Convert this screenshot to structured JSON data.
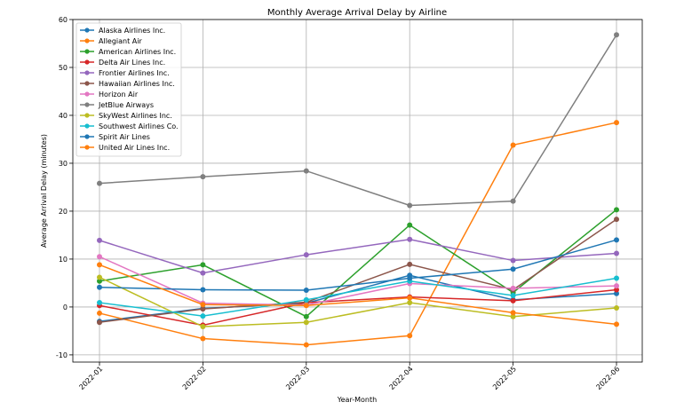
{
  "chart_data": {
    "type": "line",
    "title": "Monthly Average Arrival Delay by Airline",
    "xlabel": "Year-Month",
    "ylabel": "Average Arrival Delay (minutes)",
    "categories": [
      "2022-01",
      "2022-02",
      "2022-03",
      "2022-04",
      "2022-05",
      "2022-06"
    ],
    "ylim": [
      -11.5,
      60
    ],
    "yticks": [
      -10,
      0,
      10,
      20,
      30,
      40,
      50,
      60
    ],
    "grid": true,
    "legend_position": "top-left",
    "series": [
      {
        "name": "Alaska Airlines Inc.",
        "color": "#1f77b4",
        "values": [
          -3.0,
          -0.3,
          0.8,
          6.6,
          1.5,
          2.8
        ]
      },
      {
        "name": "Allegiant Air",
        "color": "#ff7f0e",
        "values": [
          -1.3,
          -6.6,
          -7.9,
          -6.0,
          33.8,
          38.5
        ]
      },
      {
        "name": "American Airlines Inc.",
        "color": "#2ca02c",
        "values": [
          5.4,
          8.8,
          -2.0,
          17.1,
          3.0,
          20.3
        ]
      },
      {
        "name": "Delta Air Lines Inc.",
        "color": "#d62728",
        "values": [
          0.3,
          -3.8,
          0.9,
          2.1,
          1.3,
          3.6
        ]
      },
      {
        "name": "Frontier Airlines Inc.",
        "color": "#9467bd",
        "values": [
          13.9,
          7.1,
          10.9,
          14.1,
          9.7,
          11.2
        ]
      },
      {
        "name": "Hawaiian Airlines Inc.",
        "color": "#8c564b",
        "values": [
          -3.2,
          -0.4,
          1.0,
          8.9,
          3.6,
          18.3
        ]
      },
      {
        "name": "Horizon Air",
        "color": "#e377c2",
        "values": [
          10.5,
          0.8,
          0.4,
          4.9,
          3.9,
          4.4
        ]
      },
      {
        "name": "JetBlue Airways",
        "color": "#7f7f7f",
        "values": [
          25.8,
          27.2,
          28.4,
          21.2,
          22.1,
          56.8
        ]
      },
      {
        "name": "SkyWest Airlines Inc.",
        "color": "#bcbd22",
        "values": [
          6.2,
          -4.1,
          -3.2,
          0.9,
          -2.0,
          -0.2
        ]
      },
      {
        "name": "Southwest Airlines Co.",
        "color": "#17becf",
        "values": [
          0.9,
          -1.9,
          1.5,
          5.4,
          2.4,
          6.0
        ]
      },
      {
        "name": "Spirit Air Lines",
        "color": "#1f77b4",
        "values": [
          4.1,
          3.6,
          3.5,
          6.0,
          7.9,
          14.0
        ]
      },
      {
        "name": "United Air Lines Inc.",
        "color": "#ff7f0e",
        "values": [
          8.8,
          0.5,
          0.3,
          1.9,
          -1.2,
          -3.6
        ]
      }
    ]
  }
}
